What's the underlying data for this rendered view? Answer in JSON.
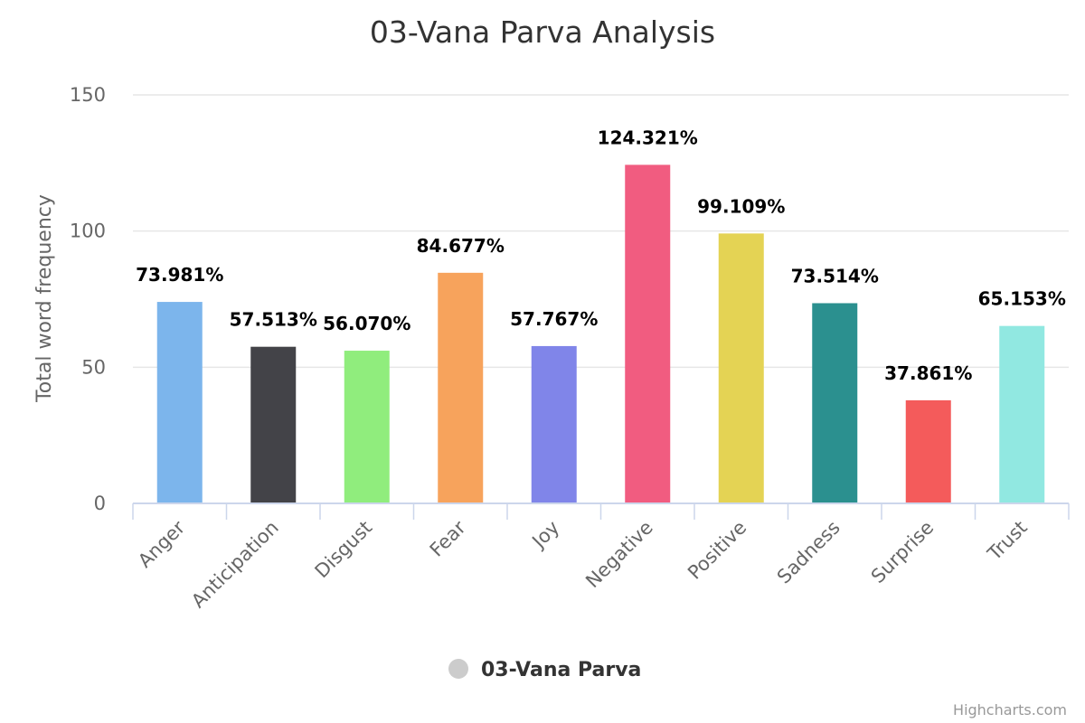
{
  "chart_data": {
    "type": "bar",
    "title": "03-Vana Parva Analysis",
    "ylabel": "Total word frequency",
    "xlabel": "",
    "ylim": [
      0,
      150
    ],
    "yticks": [
      0,
      50,
      100,
      150
    ],
    "grid": true,
    "legend_position": "bottom-center",
    "categories": [
      "Anger",
      "Anticipation",
      "Disgust",
      "Fear",
      "Joy",
      "Negative",
      "Positive",
      "Sadness",
      "Surprise",
      "Trust"
    ],
    "series": [
      {
        "name": "03-Vana Parva",
        "values": [
          73.981,
          57.513,
          56.07,
          84.677,
          57.767,
          124.321,
          99.109,
          73.514,
          37.861,
          65.153
        ],
        "labels": [
          "73.981%",
          "57.513%",
          "56.070%",
          "84.677%",
          "57.767%",
          "124.321%",
          "99.109%",
          "73.514%",
          "37.861%",
          "65.153%"
        ]
      }
    ],
    "colors": [
      "#7cb5ec",
      "#434348",
      "#90ed7d",
      "#f7a35c",
      "#8085e9",
      "#f15c80",
      "#e4d354",
      "#2b908f",
      "#f45b5b",
      "#91e8e1"
    ],
    "legend_color": "#cccccc",
    "credits": "Highcharts.com"
  }
}
